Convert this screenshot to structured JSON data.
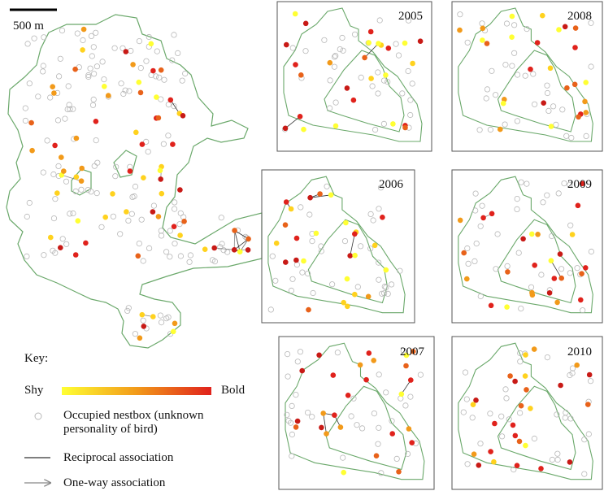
{
  "scale_bar": {
    "label": "500 m"
  },
  "panels": [
    {
      "year": "2005"
    },
    {
      "year": "2008"
    },
    {
      "year": "2006"
    },
    {
      "year": "2009"
    },
    {
      "year": "2007"
    },
    {
      "year": "2010"
    }
  ],
  "key": {
    "title": "Key:",
    "shy_label": "Shy",
    "bold_label": "Bold",
    "nestbox_label": "Occupied nestbox (unknown personality of bird)",
    "reciprocal_label": "Reciprocal association",
    "oneway_label": "One-way association"
  },
  "colors": {
    "boundary": "#6aa86a",
    "nestbox_empty": "#b8b8b8",
    "shy": "#ffff33",
    "mid": "#f29a1a",
    "bold": "#e0221c",
    "reciprocal_line": "#333333",
    "oneway_line": "#888888"
  }
}
